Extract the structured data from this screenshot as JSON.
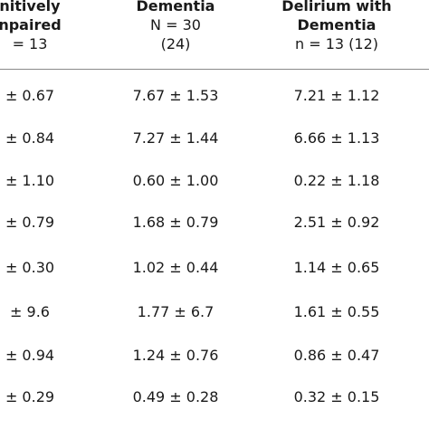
{
  "header": {
    "col1": {
      "line1": "nitively",
      "line2": "npaired",
      "line3": "= 13"
    },
    "col2": {
      "line1": "Dementia",
      "line2": "N = 30",
      "line3": "(24)"
    },
    "col3": {
      "line1": "Delirium with",
      "line2": "Dementia",
      "line3": "n = 13 (12)"
    }
  },
  "rows": [
    {
      "c1": "± 0.67",
      "c2": "7.67 ± 1.53",
      "c3": "7.21 ± 1.12"
    },
    {
      "c1": "± 0.84",
      "c2": "7.27 ± 1.44",
      "c3": "6.66 ± 1.13"
    },
    {
      "c1": "± 1.10",
      "c2": "0.60 ± 1.00",
      "c3": "0.22 ± 1.18"
    },
    {
      "c1": "± 0.79",
      "c2": "1.68 ± 0.79",
      "c3": "2.51 ± 0.92"
    },
    {
      "c1": "± 0.30",
      "c2": "1.02 ± 0.44",
      "c3": "1.14 ± 0.65"
    },
    {
      "c1": "± 9.6",
      "c2": "1.77 ± 6.7",
      "c3": "1.61 ± 0.55"
    },
    {
      "c1": "± 0.94",
      "c2": "1.24 ± 0.76",
      "c3": "0.86 ± 0.47"
    },
    {
      "c1": "± 0.29",
      "c2": "0.49 ± 0.28",
      "c3": "0.32 ± 0.15"
    }
  ]
}
